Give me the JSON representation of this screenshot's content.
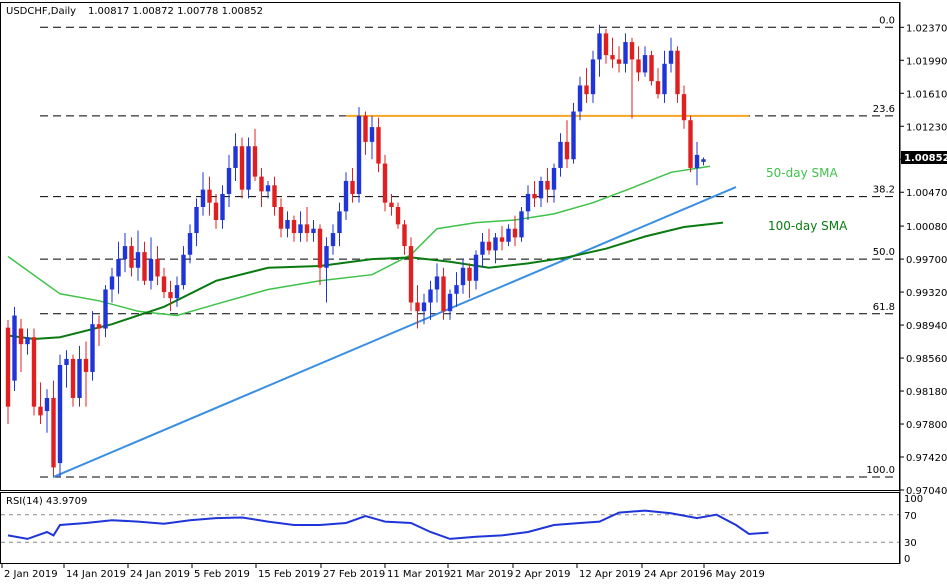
{
  "header": {
    "symbol": "USDCHF,Daily",
    "ohlc": "1.00817 1.00872 1.00778 1.00852"
  },
  "price_scale": {
    "ticks": [
      "1.02370",
      "1.01990",
      "1.01610",
      "1.01230",
      "1.00850",
      "1.00470",
      "1.00080",
      "0.99700",
      "0.99320",
      "0.98940",
      "0.98560",
      "0.98180",
      "0.97800",
      "0.97420",
      "0.97040"
    ],
    "current_price": "1.00852"
  },
  "fibonacci": [
    {
      "label": "0.0",
      "price": 1.0237
    },
    {
      "label": "23.6",
      "price": 1.0135
    },
    {
      "label": "38.2",
      "price": 1.0042
    },
    {
      "label": "50.0",
      "price": 0.997
    },
    {
      "label": "61.8",
      "price": 0.9907
    },
    {
      "label": "100.0",
      "price": 0.9719
    }
  ],
  "annotations": {
    "sma50": "50-day SMA",
    "sma100": "100-day SMA"
  },
  "rsi_panel": {
    "label": "RSI(14) 43.9709",
    "levels": [
      "70",
      "30"
    ],
    "scale_top": "100",
    "scale_bottom": "0"
  },
  "dates": [
    "2 Jan 2019",
    "14 Jan 2019",
    "24 Jan 2019",
    "5 Feb 2019",
    "15 Feb 2019",
    "27 Feb 2019",
    "11 Mar 2019",
    "21 Mar 2019",
    "2 Apr 2019",
    "12 Apr 2019",
    "24 Apr 2019",
    "6 May 2019"
  ],
  "colors": {
    "bull": "#1f35d8",
    "bear": "#e02020",
    "sma50": "#3fc24a",
    "sma100": "#0a7a10",
    "trendline": "#3a8fe0",
    "resistance": "#f5a623",
    "rsi": "#1f35d8"
  },
  "chart_data": {
    "type": "candlestick",
    "price_range": [
      0.9704,
      1.0265
    ],
    "candles": [
      [
        0.9891,
        0.99,
        0.978,
        0.98
      ],
      [
        0.983,
        0.9915,
        0.9818,
        0.9905
      ],
      [
        0.989,
        0.9901,
        0.984,
        0.9872
      ],
      [
        0.9872,
        0.989,
        0.986,
        0.988
      ],
      [
        0.988,
        0.989,
        0.979,
        0.98
      ],
      [
        0.98,
        0.9828,
        0.978,
        0.979
      ],
      [
        0.9795,
        0.982,
        0.977,
        0.981
      ],
      [
        0.981,
        0.983,
        0.972,
        0.973
      ],
      [
        0.9735,
        0.986,
        0.9719,
        0.9848
      ],
      [
        0.9848,
        0.9865,
        0.9822,
        0.9855
      ],
      [
        0.9855,
        0.986,
        0.98,
        0.981
      ],
      [
        0.981,
        0.987,
        0.98,
        0.9855
      ],
      [
        0.9855,
        0.9875,
        0.98,
        0.984
      ],
      [
        0.984,
        0.991,
        0.983,
        0.9895
      ],
      [
        0.9895,
        0.9905,
        0.987,
        0.989
      ],
      [
        0.989,
        0.994,
        0.988,
        0.9935
      ],
      [
        0.9935,
        0.996,
        0.992,
        0.995
      ],
      [
        0.995,
        0.999,
        0.993,
        0.997
      ],
      [
        0.997,
        1.0,
        0.9955,
        0.9985
      ],
      [
        0.9985,
        0.9995,
        0.995,
        0.996
      ],
      [
        0.996,
        1.0003,
        0.9945,
        0.9978
      ],
      [
        0.9978,
        0.999,
        0.994,
        0.9945
      ],
      [
        0.9945,
        0.9995,
        0.9935,
        0.997
      ],
      [
        0.997,
        0.9985,
        0.994,
        0.995
      ],
      [
        0.995,
        0.996,
        0.9925,
        0.9932
      ],
      [
        0.9932,
        0.9945,
        0.991,
        0.9925
      ],
      [
        0.9925,
        0.995,
        0.9915,
        0.994
      ],
      [
        0.994,
        0.9985,
        0.9935,
        0.9975
      ],
      [
        0.9975,
        1.001,
        0.9965,
        1.0
      ],
      [
        1.0,
        1.004,
        0.9985,
        1.003
      ],
      [
        1.003,
        1.007,
        1.002,
        1.005
      ],
      [
        1.005,
        1.0065,
        1.002,
        1.0035
      ],
      [
        1.0035,
        1.0045,
        1.0005,
        1.0015
      ],
      [
        1.0015,
        1.0055,
        1.0005,
        1.0045
      ],
      [
        1.0045,
        1.009,
        1.003,
        1.0075
      ],
      [
        1.0075,
        1.0115,
        1.006,
        1.01
      ],
      [
        1.01,
        1.011,
        1.004,
        1.005
      ],
      [
        1.005,
        1.011,
        1.004,
        1.01
      ],
      [
        1.01,
        1.012,
        1.006,
        1.0065
      ],
      [
        1.0065,
        1.0075,
        1.003,
        1.0048
      ],
      [
        1.0048,
        1.006,
        1.004,
        1.0055
      ],
      [
        1.0055,
        1.0065,
        1.002,
        1.003
      ],
      [
        1.003,
        1.004,
        0.9995,
        1.0005
      ],
      [
        1.0005,
        1.0025,
        0.9995,
        1.0015
      ],
      [
        1.0015,
        1.002,
        0.999,
        1.0
      ],
      [
        1.0,
        1.0025,
        0.999,
        1.001
      ],
      [
        1.001,
        1.003,
        0.999,
        1.0
      ],
      [
        1.0,
        1.0015,
        0.999,
        1.0005
      ],
      [
        1.0005,
        1.001,
        0.994,
        0.996
      ],
      [
        0.996,
        0.9995,
        0.992,
        0.9985
      ],
      [
        0.9985,
        1.001,
        0.9975,
        1.0
      ],
      [
        1.0,
        1.0035,
        0.9985,
        1.0025
      ],
      [
        1.0025,
        1.007,
        1.0015,
        1.006
      ],
      [
        1.006,
        1.0075,
        1.0035,
        1.0045
      ],
      [
        1.0045,
        1.0145,
        1.0035,
        1.0135
      ],
      [
        1.0135,
        1.014,
        1.009,
        1.0105
      ],
      [
        1.0105,
        1.0135,
        1.0085,
        1.0122
      ],
      [
        1.0122,
        1.0133,
        1.007,
        1.008
      ],
      [
        1.008,
        1.009,
        1.0025,
        1.0035
      ],
      [
        1.0035,
        1.0045,
        1.002,
        1.003
      ],
      [
        1.003,
        1.0035,
        1.0005,
        1.001
      ],
      [
        1.001,
        1.0015,
        0.9975,
        0.9985
      ],
      [
        0.9985,
        0.9995,
        0.991,
        0.992
      ],
      [
        0.992,
        0.994,
        0.989,
        0.991
      ],
      [
        0.991,
        0.993,
        0.9895,
        0.992
      ],
      [
        0.992,
        0.9945,
        0.99,
        0.9935
      ],
      [
        0.9935,
        0.9965,
        0.992,
        0.995
      ],
      [
        0.995,
        0.996,
        0.99,
        0.991
      ],
      [
        0.991,
        0.9935,
        0.99,
        0.993
      ],
      [
        0.993,
        0.9955,
        0.9915,
        0.994
      ],
      [
        0.994,
        0.997,
        0.993,
        0.996
      ],
      [
        0.996,
        0.9965,
        0.9925,
        0.9945
      ],
      [
        0.9945,
        0.998,
        0.9935,
        0.9975
      ],
      [
        0.9975,
        1.0,
        0.996,
        0.999
      ],
      [
        0.999,
        1.0005,
        0.9975,
        0.998
      ],
      [
        0.998,
        1.0,
        0.9965,
        0.9995
      ],
      [
        0.9995,
        1.0008,
        0.998,
        0.999
      ],
      [
        0.999,
        1.001,
        0.9985,
        1.0005
      ],
      [
        1.0005,
        1.002,
        0.9985,
        0.9995
      ],
      [
        0.9995,
        1.003,
        0.999,
        1.0025
      ],
      [
        1.0025,
        1.0055,
        1.0015,
        1.0045
      ],
      [
        1.0045,
        1.006,
        1.003,
        1.004
      ],
      [
        1.004,
        1.0065,
        1.003,
        1.006
      ],
      [
        1.006,
        1.0075,
        1.0035,
        1.005
      ],
      [
        1.005,
        1.008,
        1.0035,
        1.0075
      ],
      [
        1.0075,
        1.0115,
        1.0065,
        1.0105
      ],
      [
        1.0105,
        1.013,
        1.0075,
        1.0085
      ],
      [
        1.0085,
        1.015,
        1.008,
        1.014
      ],
      [
        1.014,
        1.018,
        1.013,
        1.017
      ],
      [
        1.017,
        1.019,
        1.015,
        1.016
      ],
      [
        1.016,
        1.021,
        1.015,
        1.02
      ],
      [
        1.02,
        1.024,
        1.018,
        1.023
      ],
      [
        1.023,
        1.0235,
        1.0195,
        1.0205
      ],
      [
        1.0205,
        1.0225,
        1.019,
        1.02
      ],
      [
        1.02,
        1.0215,
        1.0185,
        1.0195
      ],
      [
        1.0195,
        1.023,
        1.0185,
        1.022
      ],
      [
        1.022,
        1.0225,
        1.0132,
        1.02
      ],
      [
        1.02,
        1.0215,
        1.0175,
        1.0185
      ],
      [
        1.0185,
        1.0215,
        1.018,
        1.0205
      ],
      [
        1.0205,
        1.021,
        1.017,
        1.0175
      ],
      [
        1.0175,
        1.019,
        1.0155,
        1.016
      ],
      [
        1.016,
        1.021,
        1.015,
        1.0195
      ],
      [
        1.0195,
        1.0225,
        1.0185,
        1.021
      ],
      [
        1.021,
        1.0215,
        1.015,
        1.016
      ],
      [
        1.016,
        1.017,
        1.012,
        1.013
      ],
      [
        1.013,
        1.0135,
        1.007,
        1.0075
      ],
      [
        1.0075,
        1.0105,
        1.0055,
        1.009
      ],
      [
        1.0082,
        1.0087,
        1.0078,
        1.0085
      ]
    ],
    "sma50": [
      [
        0,
        0.9973
      ],
      [
        8,
        0.993
      ],
      [
        14,
        0.9922
      ],
      [
        20,
        0.991
      ],
      [
        26,
        0.9905
      ],
      [
        32,
        0.9918
      ],
      [
        40,
        0.9935
      ],
      [
        48,
        0.9945
      ],
      [
        56,
        0.9952
      ],
      [
        62,
        0.9975
      ],
      [
        66,
        1.0005
      ],
      [
        72,
        1.0012
      ],
      [
        78,
        1.0015
      ],
      [
        84,
        1.0022
      ],
      [
        90,
        1.0035
      ],
      [
        96,
        1.0052
      ],
      [
        102,
        1.007
      ],
      [
        108,
        1.0077
      ]
    ],
    "sma100": [
      [
        0,
        0.9882
      ],
      [
        4,
        0.9878
      ],
      [
        8,
        0.988
      ],
      [
        16,
        0.9895
      ],
      [
        24,
        0.9915
      ],
      [
        32,
        0.9945
      ],
      [
        40,
        0.996
      ],
      [
        48,
        0.9962
      ],
      [
        56,
        0.997
      ],
      [
        62,
        0.9972
      ],
      [
        68,
        0.9967
      ],
      [
        74,
        0.996
      ],
      [
        80,
        0.9965
      ],
      [
        86,
        0.9972
      ],
      [
        92,
        0.9982
      ],
      [
        98,
        0.9996
      ],
      [
        104,
        1.0007
      ],
      [
        110,
        1.0012
      ]
    ],
    "trendline": [
      [
        7,
        0.9719
      ],
      [
        112,
        1.0053
      ]
    ],
    "resistance": {
      "x": [
        52,
        114
      ],
      "price": 1.0135
    },
    "rsi": [
      [
        0,
        40
      ],
      [
        3,
        35
      ],
      [
        6,
        45
      ],
      [
        7,
        40
      ],
      [
        8,
        55
      ],
      [
        12,
        58
      ],
      [
        16,
        62
      ],
      [
        20,
        60
      ],
      [
        24,
        57
      ],
      [
        28,
        62
      ],
      [
        32,
        65
      ],
      [
        36,
        66
      ],
      [
        40,
        60
      ],
      [
        44,
        55
      ],
      [
        48,
        55
      ],
      [
        52,
        58
      ],
      [
        55,
        68
      ],
      [
        58,
        60
      ],
      [
        62,
        58
      ],
      [
        65,
        45
      ],
      [
        68,
        35
      ],
      [
        72,
        38
      ],
      [
        76,
        40
      ],
      [
        80,
        45
      ],
      [
        84,
        55
      ],
      [
        88,
        58
      ],
      [
        91,
        60
      ],
      [
        94,
        73
      ],
      [
        98,
        76
      ],
      [
        102,
        72
      ],
      [
        106,
        65
      ],
      [
        109,
        70
      ],
      [
        112,
        55
      ],
      [
        114,
        42
      ],
      [
        117,
        44
      ]
    ],
    "rsi_range": [
      0,
      100
    ],
    "rsi_levels": [
      70,
      30
    ]
  }
}
